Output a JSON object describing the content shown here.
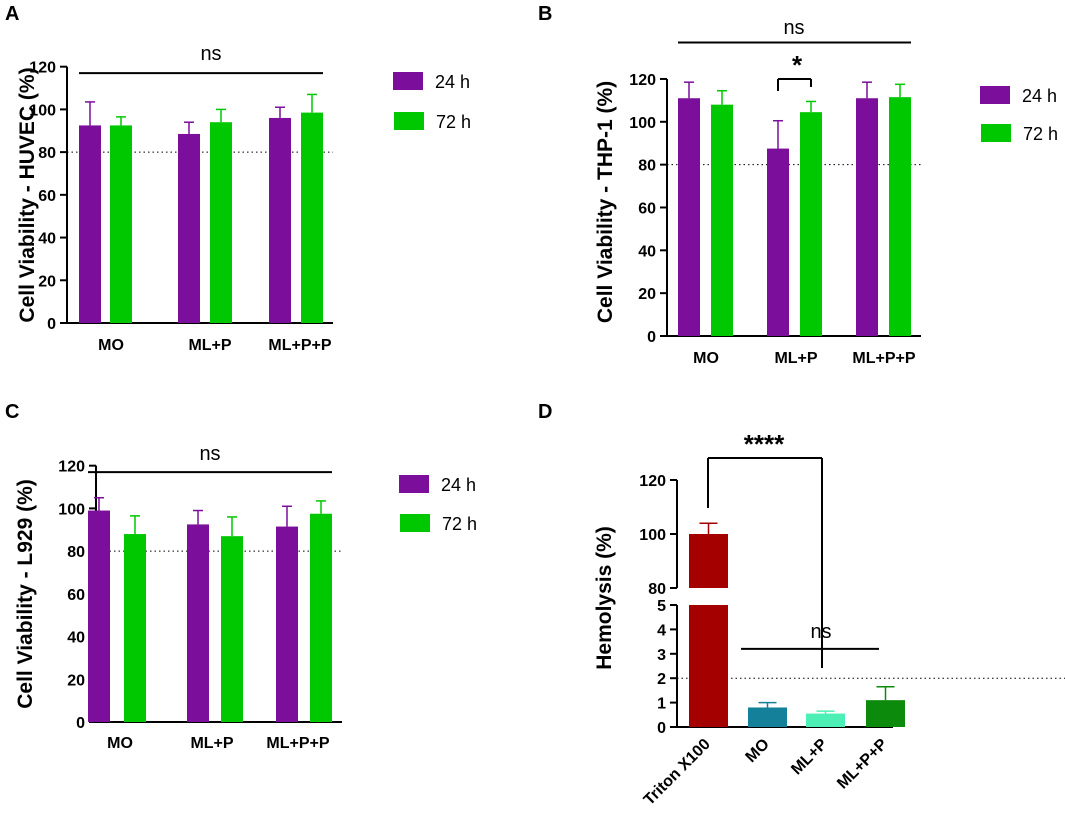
{
  "colors": {
    "purple": "#7B0E9B",
    "green": "#00C800",
    "triton": "#A40000",
    "mo_d": "#14809A",
    "mlp_d": "#4CF0B4",
    "mlpp_d": "#0B8A0B",
    "axis": "#000000"
  },
  "chart_data": [
    {
      "panel": "A",
      "type": "bar",
      "categories": [
        "MO",
        "ML+P",
        "ML+P+P"
      ],
      "series": [
        {
          "name": "24 h",
          "values": [
            92.5,
            88.5,
            96
          ],
          "errors": [
            11,
            5.5,
            5
          ]
        },
        {
          "name": "72 h",
          "values": [
            92.5,
            94,
            98.5
          ],
          "errors": [
            4,
            6,
            8.5
          ]
        }
      ],
      "ylabel": "Cell Viability - HUVEC (%)",
      "ylim": [
        0,
        120
      ],
      "yticks": [
        "0",
        "20",
        "40",
        "60",
        "80",
        "100",
        "120"
      ],
      "reference_line": 80,
      "annotations": [
        {
          "text": "ns",
          "from_group": 0,
          "to_group": 2,
          "y": 117
        }
      ],
      "legend": [
        "24 h",
        "72 h"
      ]
    },
    {
      "panel": "B",
      "type": "bar",
      "categories": [
        "MO",
        "ML+P",
        "ML+P+P"
      ],
      "series": [
        {
          "name": "24 h",
          "values": [
            111,
            87.5,
            111
          ],
          "errors": [
            7.5,
            13,
            7.5
          ]
        },
        {
          "name": "72 h",
          "values": [
            108,
            104.5,
            111.5
          ],
          "errors": [
            6.5,
            5,
            6
          ]
        }
      ],
      "ylabel": "Cell Viability - THP-1 (%)",
      "ylim": [
        0,
        120
      ],
      "yticks": [
        "0",
        "20",
        "40",
        "60",
        "80",
        "100",
        "120"
      ],
      "reference_line": 80,
      "annotations": [
        {
          "text": "ns",
          "from_group": 0,
          "to_group": 2,
          "y": 137
        },
        {
          "text": "*",
          "bracket_group": 1,
          "y": 120
        }
      ],
      "legend": [
        "24 h",
        "72 h"
      ]
    },
    {
      "panel": "C",
      "type": "bar",
      "categories": [
        "MO",
        "ML+P",
        "ML+P+P"
      ],
      "series": [
        {
          "name": "24 h",
          "values": [
            99,
            92.5,
            91.5
          ],
          "errors": [
            6,
            6.5,
            9.5
          ]
        },
        {
          "name": "72 h",
          "values": [
            88,
            87,
            97.5
          ],
          "errors": [
            8.5,
            9,
            6
          ]
        }
      ],
      "ylabel": "Cell Viability - L929 (%)",
      "ylim": [
        0,
        120
      ],
      "yticks": [
        "0",
        "20",
        "40",
        "60",
        "80",
        "100",
        "120"
      ],
      "reference_line": 80,
      "annotations": [
        {
          "text": "ns",
          "from_group": 0,
          "to_group": 2,
          "y": 117
        }
      ],
      "legend": [
        "24 h",
        "72 h"
      ]
    },
    {
      "panel": "D",
      "type": "bar",
      "categories": [
        "Triton X100",
        "MO",
        "ML+P",
        "ML+P+P"
      ],
      "values": [
        100,
        0.8,
        0.55,
        1.1
      ],
      "errors": [
        4,
        0.2,
        0.1,
        0.55
      ],
      "ylabel": "Hemolysis (%)",
      "broken_axis": true,
      "lower_ylim": [
        0,
        5
      ],
      "upper_ylim": [
        80,
        120
      ],
      "yticks_lower": [
        "0",
        "1",
        "2",
        "3",
        "4",
        "5"
      ],
      "yticks_upper": [
        "80",
        "100",
        "120"
      ],
      "reference_line": 2,
      "annotations": [
        {
          "text": "****",
          "from_group": 0,
          "to_group": 1
        },
        {
          "text": "ns",
          "from_group": 1,
          "to_group": 3,
          "y": 3.2
        }
      ]
    }
  ]
}
